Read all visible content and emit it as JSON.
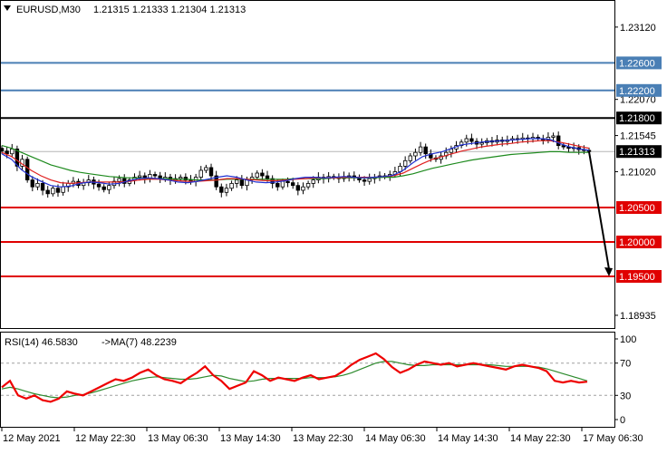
{
  "header": {
    "symbol": "EURUSD,M30",
    "ohlc": "1.21315 1.21333 1.21304 1.21313"
  },
  "rsi_header": {
    "label": "RSI(14) 46.5830",
    "ma_label": "->MA(7) 48.2239"
  },
  "colors": {
    "blue_level": "#4a7fb5",
    "black_level": "#000000",
    "red_level": "#e00000",
    "ma_fast": "#1f2fd1",
    "ma_mid": "#e02020",
    "ma_slow": "#1d8a1d",
    "rsi": "#ee0000",
    "rsi_ma": "#2e8b2e",
    "badge_current": "#000000"
  },
  "chart_data": [
    {
      "type": "line",
      "name": "price",
      "ylim": [
        1.1875,
        1.235
      ],
      "y_ticks": [
        "1.23120",
        "1.22070",
        "1.21545",
        "1.21020",
        "1.18935"
      ],
      "x_ticks": [
        "12 May 2021",
        "12 May 22:30",
        "13 May 06:30",
        "13 May 14:30",
        "13 May 22:30",
        "14 May 06:30",
        "14 May 14:30",
        "14 May 22:30",
        "17 May 06:30"
      ],
      "levels": [
        {
          "value": 1.226,
          "label": "1.22600",
          "kind": "blue"
        },
        {
          "value": 1.222,
          "label": "1.22200",
          "kind": "blue"
        },
        {
          "value": 1.218,
          "label": "1.21800",
          "kind": "black"
        },
        {
          "value": 1.205,
          "label": "1.20500",
          "kind": "red"
        },
        {
          "value": 1.2,
          "label": "1.20000",
          "kind": "red"
        },
        {
          "value": 1.195,
          "label": "1.19500",
          "kind": "red"
        }
      ],
      "current": {
        "value": 1.21313,
        "label": "1.21313"
      },
      "close": [
        1.2132,
        1.2128,
        1.2135,
        1.211,
        1.212,
        1.209,
        1.208,
        1.2085,
        1.2075,
        1.207,
        1.2078,
        1.2072,
        1.208,
        1.2085,
        1.2088,
        1.2082,
        1.2086,
        1.209,
        1.2084,
        1.208,
        1.2076,
        1.2082,
        1.2088,
        1.2092,
        1.2085,
        1.209,
        1.2094,
        1.2096,
        1.2092,
        1.2098,
        1.2096,
        1.2092,
        1.2094,
        1.209,
        1.2092,
        1.2094,
        1.209,
        1.2088,
        1.2094,
        1.2104,
        1.2108,
        1.2096,
        1.208,
        1.2072,
        1.2078,
        1.2085,
        1.209,
        1.2082,
        1.209,
        1.2094,
        1.21,
        1.2096,
        1.2092,
        1.2085,
        1.208,
        1.2088,
        1.2086,
        1.2082,
        1.2075,
        1.208,
        1.2085,
        1.209,
        1.2094,
        1.2092,
        1.2095,
        1.2094,
        1.2092,
        1.2095,
        1.2096,
        1.2094,
        1.209,
        1.2088,
        1.2092,
        1.2094,
        1.2096,
        1.2095,
        1.2098,
        1.2102,
        1.211,
        1.2118,
        1.2125,
        1.213,
        1.2138,
        1.2128,
        1.2122,
        1.212,
        1.2125,
        1.213,
        1.2135,
        1.214,
        1.2145,
        1.215,
        1.2146,
        1.2142,
        1.2144,
        1.2147,
        1.2145,
        1.2148,
        1.2146,
        1.2148,
        1.215,
        1.2149,
        1.2151,
        1.215,
        1.2152,
        1.215,
        1.2148,
        1.2152,
        1.2154,
        1.214,
        1.2138,
        1.2136,
        1.2137,
        1.2134,
        1.2133,
        1.21313
      ],
      "ma_fast": [
        1.2128,
        1.212,
        1.2105,
        1.2095,
        1.2088,
        1.2082,
        1.208,
        1.2081,
        1.2085,
        1.2087,
        1.2086,
        1.2084,
        1.2085,
        1.2089,
        1.2092,
        1.2093,
        1.2092,
        1.209,
        1.2087,
        1.2086,
        1.2088,
        1.2091,
        1.2094,
        1.2096,
        1.2094,
        1.209,
        1.2087,
        1.2086,
        1.2087,
        1.2089,
        1.2092,
        1.2094,
        1.2094,
        1.2093,
        1.2094,
        1.2095,
        1.2094,
        1.2093,
        1.2094,
        1.2095,
        1.2097,
        1.2104,
        1.2115,
        1.2124,
        1.2128,
        1.2131,
        1.2136,
        1.2141,
        1.2143,
        1.2145,
        1.2146,
        1.2147,
        1.2148,
        1.2149,
        1.215,
        1.215,
        1.2149,
        1.2143,
        1.2138,
        1.2135,
        1.2133
      ],
      "ma_mid": [
        1.213,
        1.2124,
        1.2114,
        1.2104,
        1.2096,
        1.209,
        1.2086,
        1.2085,
        1.2086,
        1.2087,
        1.2087,
        1.2087,
        1.2087,
        1.2088,
        1.209,
        1.2091,
        1.2091,
        1.209,
        1.2089,
        1.2088,
        1.2088,
        1.2089,
        1.209,
        1.2092,
        1.2092,
        1.2091,
        1.209,
        1.2089,
        1.2089,
        1.209,
        1.2091,
        1.2092,
        1.2093,
        1.2093,
        1.2093,
        1.2094,
        1.2094,
        1.2094,
        1.2094,
        1.2095,
        1.2096,
        1.21,
        1.2107,
        1.2114,
        1.212,
        1.2124,
        1.2128,
        1.2132,
        1.2135,
        1.2138,
        1.214,
        1.2142,
        1.2143,
        1.2145,
        1.2146,
        1.2147,
        1.2147,
        1.2145,
        1.2142,
        1.2139,
        1.2136
      ],
      "ma_slow": [
        1.214,
        1.2136,
        1.213,
        1.2124,
        1.2118,
        1.2112,
        1.2108,
        1.2104,
        1.2101,
        1.2099,
        1.2097,
        1.2095,
        1.2094,
        1.2093,
        1.2093,
        1.2092,
        1.2092,
        1.2092,
        1.2091,
        1.2091,
        1.209,
        1.209,
        1.209,
        1.2091,
        1.2091,
        1.2091,
        1.2091,
        1.2091,
        1.2091,
        1.2091,
        1.2092,
        1.2092,
        1.2092,
        1.2092,
        1.2093,
        1.2093,
        1.2093,
        1.2093,
        1.2093,
        1.2094,
        1.2094,
        1.2096,
        1.2099,
        1.2103,
        1.2107,
        1.211,
        1.2113,
        1.2116,
        1.2119,
        1.2121,
        1.2123,
        1.2125,
        1.2127,
        1.2128,
        1.2129,
        1.213,
        1.2131,
        1.2131,
        1.213,
        1.213,
        1.213
      ],
      "arrow": {
        "from_value": 1.2131,
        "to_value": 1.195
      }
    },
    {
      "type": "line",
      "name": "RSI",
      "ylim": [
        0,
        100
      ],
      "y_ticks": [
        "100",
        "70",
        "30",
        "0"
      ],
      "levels": [
        70,
        30
      ],
      "rsi": [
        40,
        48,
        30,
        26,
        30,
        24,
        22,
        26,
        35,
        32,
        30,
        35,
        40,
        45,
        50,
        48,
        52,
        58,
        62,
        55,
        50,
        48,
        45,
        52,
        58,
        66,
        55,
        48,
        38,
        42,
        46,
        60,
        55,
        48,
        52,
        50,
        48,
        52,
        55,
        50,
        52,
        54,
        60,
        68,
        74,
        78,
        82,
        75,
        65,
        58,
        62,
        68,
        72,
        70,
        68,
        70,
        66,
        68,
        70,
        68,
        66,
        64,
        62,
        66,
        68,
        66,
        64,
        60,
        48,
        46,
        48,
        46,
        47
      ],
      "rsi_ma": [
        38,
        40,
        38,
        35,
        32,
        30,
        28,
        27,
        28,
        30,
        31,
        33,
        36,
        39,
        42,
        45,
        48,
        50,
        52,
        53,
        52,
        51,
        50,
        50,
        51,
        53,
        55,
        54,
        51,
        49,
        47,
        48,
        50,
        51,
        51,
        51,
        51,
        51,
        52,
        52,
        52,
        53,
        55,
        58,
        62,
        66,
        70,
        72,
        72,
        70,
        68,
        67,
        67,
        68,
        68,
        68,
        68,
        68,
        68,
        68,
        68,
        67,
        66,
        66,
        66,
        66,
        65,
        63,
        60,
        57,
        54,
        51,
        48
      ]
    }
  ]
}
